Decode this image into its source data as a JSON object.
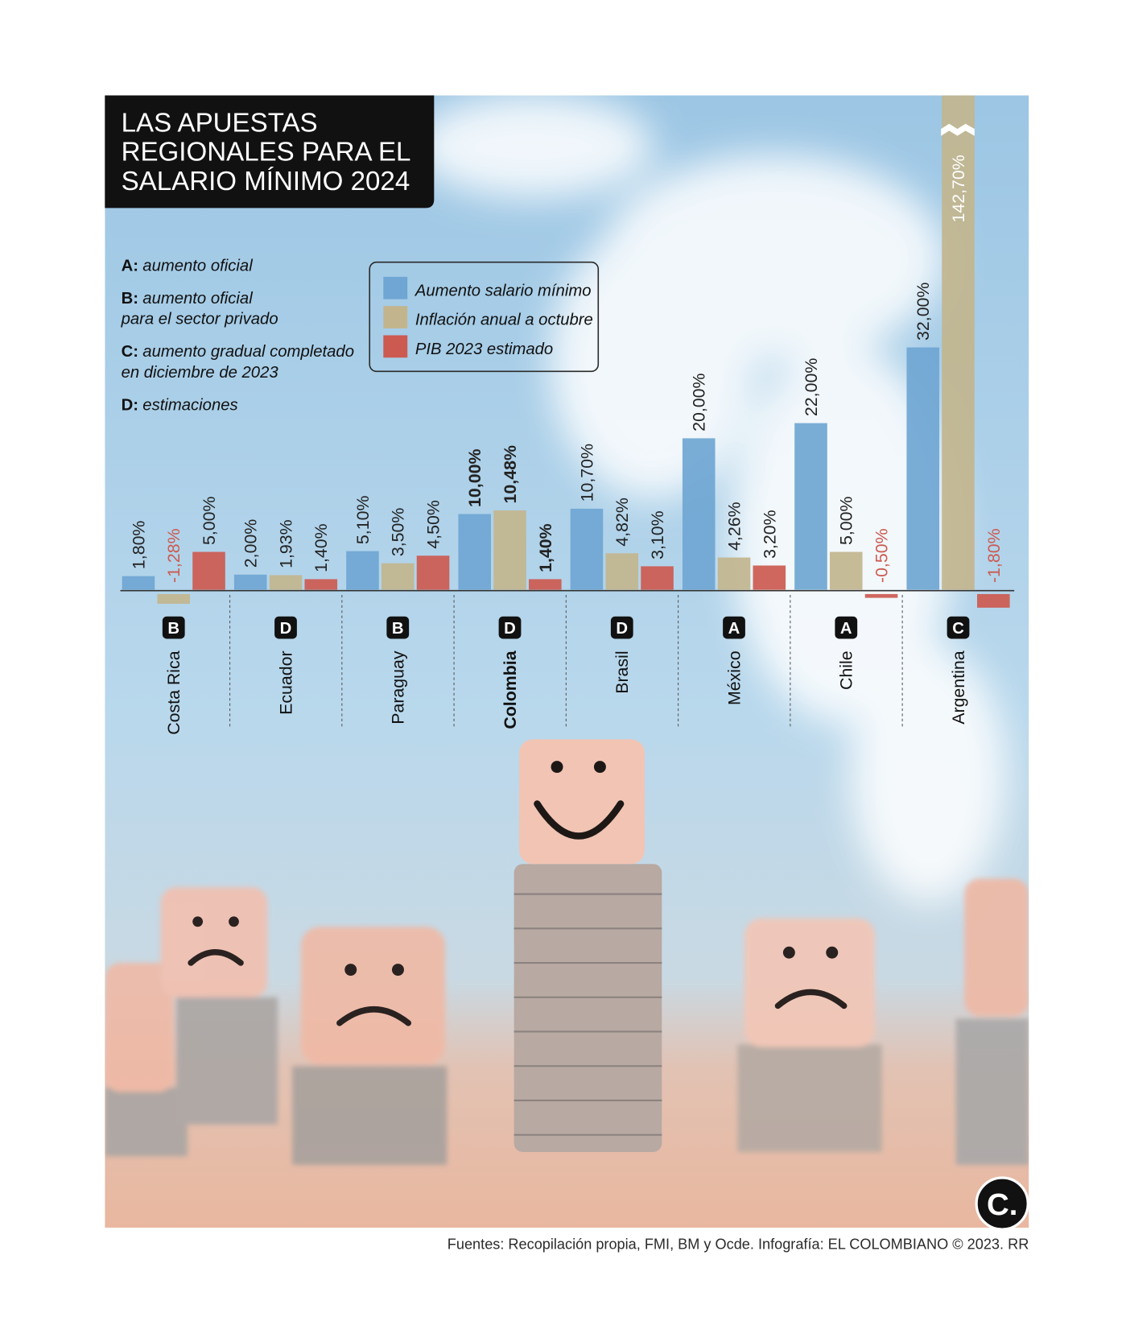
{
  "chart_data": {
    "type": "bar",
    "title": [
      "LAS APUESTAS",
      "REGIONALES PARA EL",
      "SALARIO MÍNIMO 2024"
    ],
    "notes": [
      {
        "key": "A:",
        "lines": [
          "aumento oficial"
        ]
      },
      {
        "key": "B:",
        "lines": [
          "aumento oficial",
          "para el sector privado"
        ]
      },
      {
        "key": "C:",
        "lines": [
          "aumento gradual completado",
          "en diciembre de 2023"
        ]
      },
      {
        "key": "D:",
        "lines": [
          "estimaciones"
        ]
      }
    ],
    "categories": [
      "Costa Rica",
      "Ecuador",
      "Paraguay",
      "Colombia",
      "Brasil",
      "México",
      "Chile",
      "Argentina"
    ],
    "category_codes": [
      "B",
      "D",
      "B",
      "D",
      "D",
      "A",
      "A",
      "C"
    ],
    "highlight_category": "Colombia",
    "series": [
      {
        "name": "Aumento salario mínimo",
        "color": "#6fa6d3",
        "values": [
          1.8,
          2.0,
          5.1,
          10.0,
          10.7,
          20.0,
          22.0,
          32.0
        ],
        "value_labels": [
          "1,80%",
          "2,00%",
          "5,10%",
          "10,00%",
          "10,70%",
          "20,00%",
          "22,00%",
          "32,00%"
        ]
      },
      {
        "name": "Inflación anual a octubre",
        "color": "#c2b58e",
        "values": [
          -1.28,
          1.93,
          3.5,
          10.48,
          4.82,
          4.26,
          5.0,
          142.7
        ],
        "value_labels": [
          "-1,28%",
          "1,93%",
          "3,50%",
          "10,48%",
          "4,82%",
          "4,26%",
          "5,00%",
          "142,70%"
        ]
      },
      {
        "name": "PIB 2023 estimado",
        "color": "#cc5a50",
        "values": [
          5.0,
          1.4,
          4.5,
          1.4,
          3.1,
          3.2,
          -0.5,
          -1.8
        ],
        "value_labels": [
          "5,00%",
          "1,40%",
          "4,50%",
          "1,40%",
          "3,10%",
          "3,20%",
          "-0,50%",
          "-1,80%"
        ]
      }
    ],
    "negative_label_color": "#cc5a50",
    "source": "Fuentes: Recopilación propia, FMI, BM y Ocde. Infografía: EL COLOMBIANO © 2023. RR",
    "logo": "C."
  }
}
